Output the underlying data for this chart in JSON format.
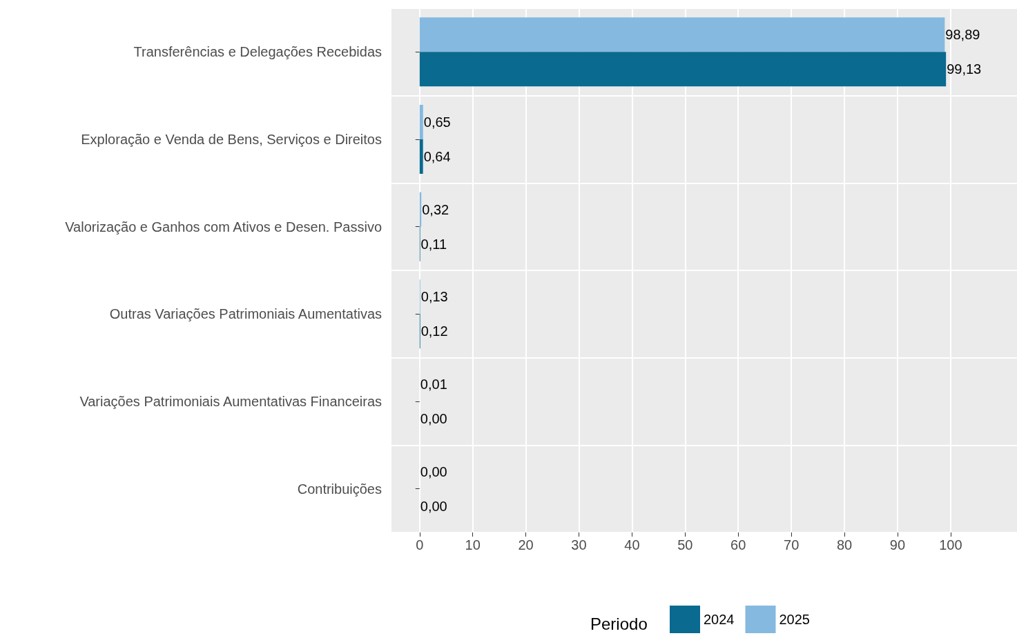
{
  "chart_data": {
    "type": "bar",
    "orientation": "horizontal",
    "categories": [
      "Transferências e Delegações Recebidas",
      "Exploração e Venda de Bens, Serviços e Direitos",
      "Valorização e Ganhos com Ativos e Desen. Passivo",
      "Outras Variações Patrimoniais Aumentativas",
      "Variações Patrimoniais Aumentativas Financeiras",
      "Contribuições"
    ],
    "series": [
      {
        "name": "2025",
        "color": "#85b9df",
        "values": [
          98.89,
          0.65,
          0.32,
          0.13,
          0.01,
          0.0
        ],
        "value_labels": [
          "98,89",
          "0,65",
          "0,32",
          "0,13",
          "0,01",
          "0,00"
        ]
      },
      {
        "name": "2024",
        "color": "#0a6a8f",
        "values": [
          99.13,
          0.64,
          0.11,
          0.12,
          0.0,
          0.0
        ],
        "value_labels": [
          "99,13",
          "0,64",
          "0,11",
          "0,12",
          "0,00",
          "0,00"
        ]
      }
    ],
    "xlim": [
      -5.3,
      112.5
    ],
    "xticks": [
      0,
      10,
      20,
      30,
      40,
      50,
      60,
      70,
      80,
      90,
      100
    ],
    "grid": true,
    "legend": "bottom",
    "legend_title": "Periodo"
  }
}
